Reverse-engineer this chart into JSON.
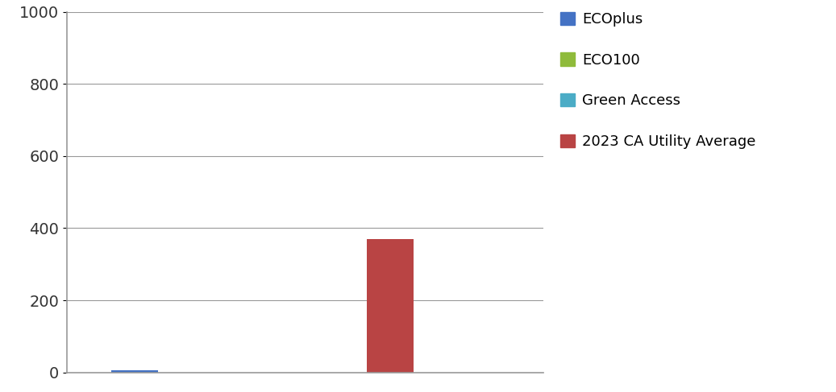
{
  "categories": [
    "ECOplus",
    "ECO100",
    "Green Access",
    "2023 CA Utility Average"
  ],
  "values": [
    7,
    0,
    0,
    370
  ],
  "bar_colors": [
    "#4472C4",
    "#8FBB3B",
    "#4BACC6",
    "#B94444"
  ],
  "legend_labels": [
    "ECOplus",
    "ECO100",
    "Green Access",
    "2023 CA Utility Average"
  ],
  "legend_colors": [
    "#4472C4",
    "#8FBB3B",
    "#4BACC6",
    "#B94444"
  ],
  "ylim": [
    0,
    1000
  ],
  "yticks": [
    0,
    200,
    400,
    600,
    800,
    1000
  ],
  "background_color": "#FFFFFF",
  "grid_color": "#999999",
  "bar_width": 0.55,
  "x_positions": [
    1,
    2,
    3,
    4
  ],
  "xlim": [
    0.2,
    5.8
  ],
  "figsize": [
    10.37,
    4.87
  ],
  "dpi": 100,
  "ytick_fontsize": 14,
  "legend_fontsize": 13,
  "legend_labelspacing": 1.8
}
